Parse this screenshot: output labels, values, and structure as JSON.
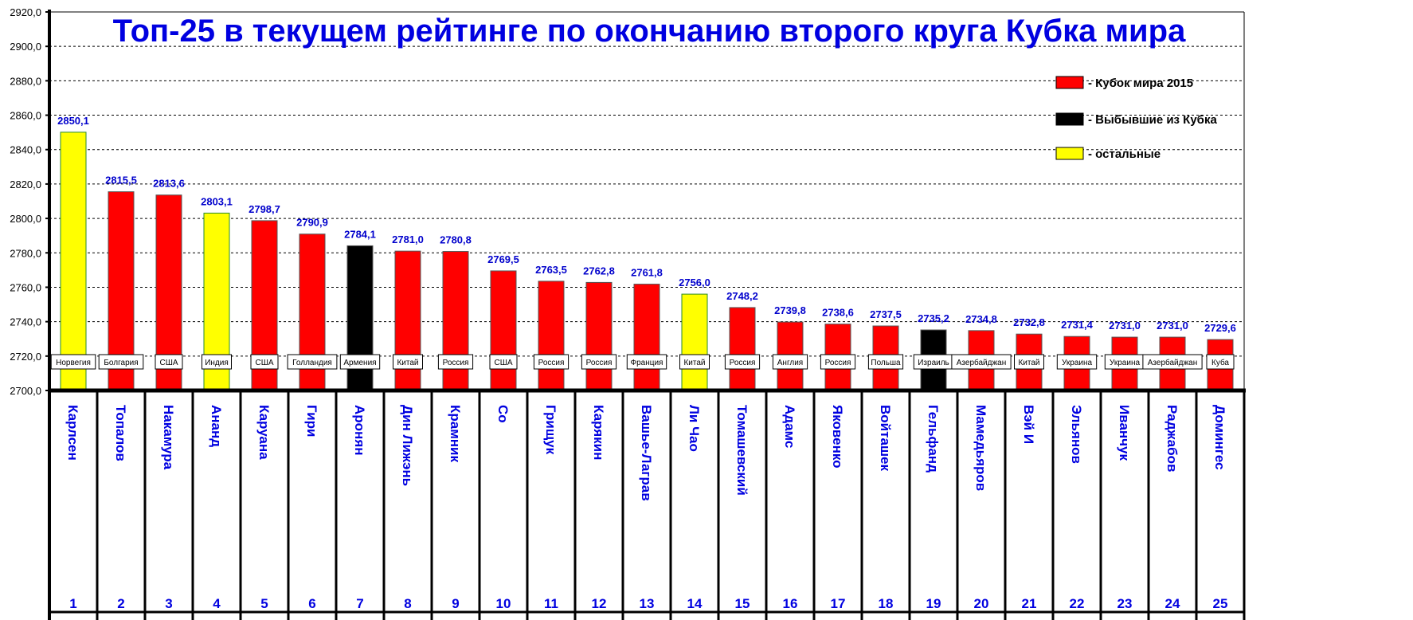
{
  "chart_data": {
    "type": "bar",
    "title": "Топ-25 в текущем рейтинге по окончанию второго круга Кубка мира",
    "ylim": [
      2700,
      2920
    ],
    "yticks": [
      "2700,0",
      "2720,0",
      "2740,0",
      "2760,0",
      "2780,0",
      "2800,0",
      "2820,0",
      "2840,0",
      "2860,0",
      "2880,0",
      "2900,0",
      "2920,0"
    ],
    "grid": true,
    "legend_position": "top-right",
    "legend": [
      {
        "key": "cup",
        "label": "- Кубок мира 2015",
        "color": "#ff0000"
      },
      {
        "key": "out",
        "label": "- Выбывшие из Кубка",
        "color": "#000000"
      },
      {
        "key": "other",
        "label": "- остальные",
        "color": "#ffff00"
      }
    ],
    "categories": [
      "1",
      "2",
      "3",
      "4",
      "5",
      "6",
      "7",
      "8",
      "9",
      "10",
      "11",
      "12",
      "13",
      "14",
      "15",
      "16",
      "17",
      "18",
      "19",
      "20",
      "21",
      "22",
      "23",
      "24",
      "25"
    ],
    "players": [
      "Карлсен",
      "Топалов",
      "Накамура",
      "Ананд",
      "Каруана",
      "Гири",
      "Аронян",
      "Дин Лижэнь",
      "Крамник",
      "Со",
      "Грищук",
      "Карякин",
      "Вашье-Лаграв",
      "Ли Чао",
      "Томашевский",
      "Адамс",
      "Яковенко",
      "Войташек",
      "Гельфанд",
      "Мамедьяров",
      "Вэй И",
      "Эльянов",
      "Иванчук",
      "Раджабов",
      "Домингес"
    ],
    "countries": [
      "Норвегия",
      "Болгария",
      "США",
      "Индия",
      "США",
      "Голландия",
      "Армения",
      "Китай",
      "Россия",
      "США",
      "Россия",
      "Россия",
      "Франция",
      "Китай",
      "Россия",
      "Англия",
      "Россия",
      "Польша",
      "Израиль",
      "Азербайджан",
      "Китай",
      "Украина",
      "Украина",
      "Азербайджан",
      "Куба"
    ],
    "values": [
      2850.1,
      2815.5,
      2813.6,
      2803.1,
      2798.7,
      2790.9,
      2784.1,
      2781.0,
      2780.8,
      2769.5,
      2763.5,
      2762.8,
      2761.8,
      2756.0,
      2748.2,
      2739.8,
      2738.6,
      2737.5,
      2735.2,
      2734.8,
      2732.8,
      2731.4,
      2731.0,
      2731.0,
      2729.6
    ],
    "value_labels": [
      "2850,1",
      "2815,5",
      "2813,6",
      "2803,1",
      "2798,7",
      "2790,9",
      "2784,1",
      "2781,0",
      "2780,8",
      "2769,5",
      "2763,5",
      "2762,8",
      "2761,8",
      "2756,0",
      "2748,2",
      "2739,8",
      "2738,6",
      "2737,5",
      "2735,2",
      "2734,8",
      "2732,8",
      "2731,4",
      "2731,0",
      "2731,0",
      "2729,6"
    ],
    "groups": [
      "other",
      "cup",
      "cup",
      "other",
      "cup",
      "cup",
      "out",
      "cup",
      "cup",
      "cup",
      "cup",
      "cup",
      "cup",
      "other",
      "cup",
      "cup",
      "cup",
      "cup",
      "out",
      "cup",
      "cup",
      "cup",
      "cup",
      "cup",
      "cup"
    ]
  }
}
